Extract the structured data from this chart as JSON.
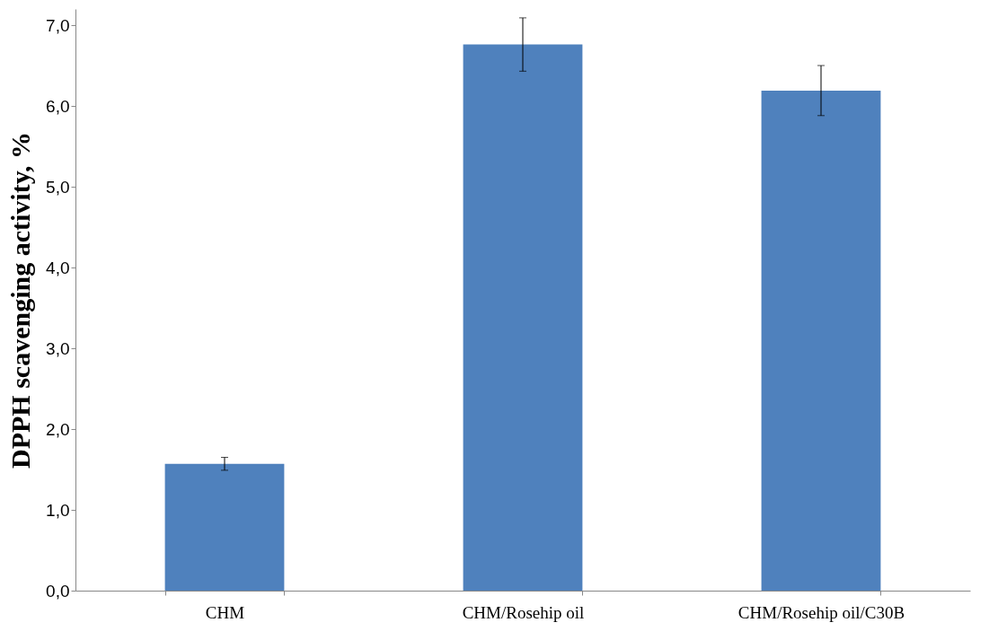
{
  "chart_data": {
    "type": "bar",
    "ylabel": "DPPH scavenging activity, %",
    "categories": [
      "CHM",
      "CHM/Rosehip oil",
      "CHM/Rosehip oil/C30B"
    ],
    "values": [
      1.57,
      6.76,
      6.19
    ],
    "errors": [
      0.08,
      0.33,
      0.31
    ],
    "color": "#4f81bd",
    "ylim": [
      0,
      7.2
    ],
    "yticks": [
      {
        "value": 0,
        "label": "0,0"
      },
      {
        "value": 1,
        "label": "1,0"
      },
      {
        "value": 2,
        "label": "2,0"
      },
      {
        "value": 3,
        "label": "3,0"
      },
      {
        "value": 4,
        "label": "4,0"
      },
      {
        "value": 5,
        "label": "5,0"
      },
      {
        "value": 6,
        "label": "6,0"
      },
      {
        "value": 7,
        "label": "7,0"
      }
    ],
    "grid": false
  }
}
